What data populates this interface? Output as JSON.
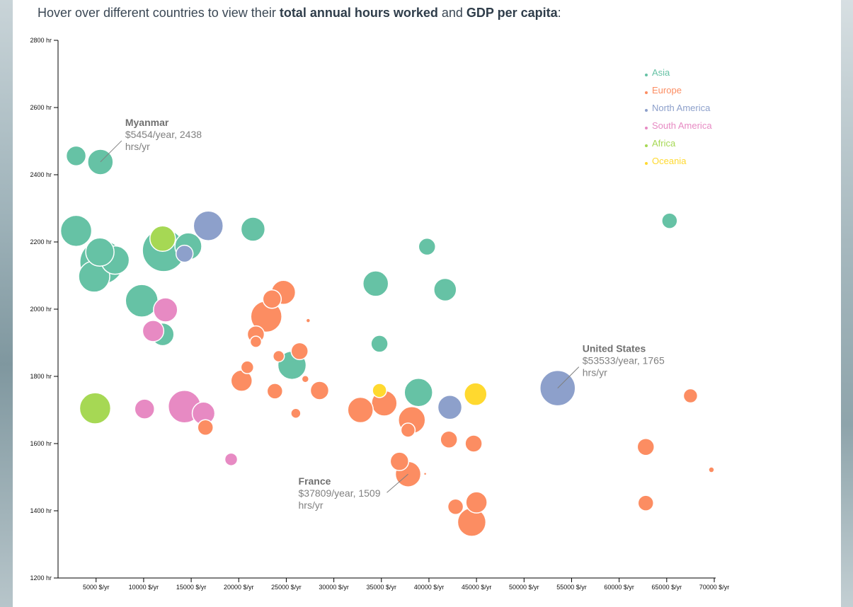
{
  "header": {
    "prefix": "Hover over different countries to view their ",
    "bold1": "total annual hours worked",
    "mid": " and ",
    "bold2": "GDP per capita",
    "suffix": ":"
  },
  "colors": {
    "Asia": "#66c2a5",
    "Europe": "#fc8d62",
    "North America": "#8da0cb",
    "South America": "#e78ac3",
    "Africa": "#a6d854",
    "Oceania": "#ffd92f"
  },
  "chart_data": {
    "type": "scatter",
    "title": "",
    "xlabel": "",
    "ylabel": "",
    "xlim": [
      1000,
      70000
    ],
    "ylim": [
      1200,
      2800
    ],
    "x_ticks": [
      5000,
      10000,
      15000,
      20000,
      25000,
      30000,
      35000,
      40000,
      45000,
      50000,
      55000,
      60000,
      65000,
      70000
    ],
    "x_tick_labels": [
      "5000 $/yr",
      "10000 $/yr",
      "15000 $/yr",
      "20000 $/yr",
      "25000 $/yr",
      "30000 $/yr",
      "35000 $/yr",
      "40000 $/yr",
      "45000 $/yr",
      "50000 $/yr",
      "55000 $/yr",
      "60000 $/yr",
      "65000 $/yr",
      "70000 $/yr"
    ],
    "y_ticks": [
      1200,
      1400,
      1600,
      1800,
      2000,
      2200,
      2400,
      2600,
      2800
    ],
    "y_tick_labels": [
      "1200 hr",
      "1400 hr",
      "1600 hr",
      "1800 hr",
      "2000 hr",
      "2200 hr",
      "2400 hr",
      "2600 hr",
      "2800 hr"
    ],
    "grid": false,
    "legend_position": "top-right",
    "legend": [
      "Asia",
      "Europe",
      "North America",
      "South America",
      "Africa",
      "Oceania"
    ],
    "point_size": "relative bubble size",
    "points": [
      {
        "x": 5600,
        "y": 2140,
        "size": 31,
        "region": "Asia"
      },
      {
        "x": 12100,
        "y": 2175,
        "size": 30,
        "region": "Asia"
      },
      {
        "x": 9800,
        "y": 2025,
        "size": 23,
        "region": "Asia"
      },
      {
        "x": 4800,
        "y": 2097,
        "size": 22,
        "region": "Asia"
      },
      {
        "x": 2900,
        "y": 2233,
        "size": 22,
        "region": "Asia"
      },
      {
        "x": 7000,
        "y": 2146,
        "size": 20,
        "region": "Asia"
      },
      {
        "x": 5400,
        "y": 2170,
        "size": 20,
        "region": "Asia"
      },
      {
        "x": 25600,
        "y": 1833,
        "size": 20,
        "region": "Asia"
      },
      {
        "x": 38900,
        "y": 1752,
        "size": 20,
        "region": "Asia"
      },
      {
        "x": 14700,
        "y": 2187,
        "size": 19,
        "region": "Asia"
      },
      {
        "x": 5454,
        "y": 2438,
        "size": 18,
        "region": "Asia"
      },
      {
        "x": 34400,
        "y": 2076,
        "size": 18,
        "region": "Asia"
      },
      {
        "x": 21500,
        "y": 2238,
        "size": 17,
        "region": "Asia"
      },
      {
        "x": 41700,
        "y": 2058,
        "size": 16,
        "region": "Asia"
      },
      {
        "x": 12000,
        "y": 1925,
        "size": 16,
        "region": "Asia"
      },
      {
        "x": 2900,
        "y": 2456,
        "size": 14,
        "region": "Asia"
      },
      {
        "x": 34800,
        "y": 1897,
        "size": 12,
        "region": "Asia"
      },
      {
        "x": 39800,
        "y": 2186,
        "size": 12,
        "region": "Asia"
      },
      {
        "x": 65300,
        "y": 2263,
        "size": 11,
        "region": "Asia"
      },
      {
        "x": 22900,
        "y": 1978,
        "size": 22,
        "region": "Europe"
      },
      {
        "x": 44500,
        "y": 1366,
        "size": 20,
        "region": "Europe"
      },
      {
        "x": 35300,
        "y": 1720,
        "size": 18,
        "region": "Europe"
      },
      {
        "x": 37809,
        "y": 1509,
        "size": 18,
        "region": "Europe"
      },
      {
        "x": 32800,
        "y": 1700,
        "size": 18,
        "region": "Europe"
      },
      {
        "x": 38200,
        "y": 1670,
        "size": 19,
        "region": "Europe"
      },
      {
        "x": 24700,
        "y": 2050,
        "size": 17,
        "region": "Europe"
      },
      {
        "x": 20300,
        "y": 1787,
        "size": 15,
        "region": "Europe"
      },
      {
        "x": 45000,
        "y": 1425,
        "size": 15,
        "region": "Europe"
      },
      {
        "x": 36900,
        "y": 1547,
        "size": 13,
        "region": "Europe"
      },
      {
        "x": 28500,
        "y": 1758,
        "size": 13,
        "region": "Europe"
      },
      {
        "x": 23500,
        "y": 2030,
        "size": 13,
        "region": "Europe"
      },
      {
        "x": 26400,
        "y": 1875,
        "size": 12,
        "region": "Europe"
      },
      {
        "x": 42100,
        "y": 1612,
        "size": 12,
        "region": "Europe"
      },
      {
        "x": 44700,
        "y": 1600,
        "size": 12,
        "region": "Europe"
      },
      {
        "x": 21800,
        "y": 1925,
        "size": 12,
        "region": "Europe"
      },
      {
        "x": 23800,
        "y": 1756,
        "size": 11,
        "region": "Europe"
      },
      {
        "x": 62800,
        "y": 1590,
        "size": 12,
        "region": "Europe"
      },
      {
        "x": 16500,
        "y": 1648,
        "size": 11,
        "region": "Europe"
      },
      {
        "x": 42800,
        "y": 1412,
        "size": 11,
        "region": "Europe"
      },
      {
        "x": 62800,
        "y": 1423,
        "size": 11,
        "region": "Europe"
      },
      {
        "x": 37800,
        "y": 1640,
        "size": 10,
        "region": "Europe"
      },
      {
        "x": 67500,
        "y": 1742,
        "size": 10,
        "region": "Europe"
      },
      {
        "x": 20900,
        "y": 1827,
        "size": 9,
        "region": "Europe"
      },
      {
        "x": 24200,
        "y": 1860,
        "size": 8,
        "region": "Europe"
      },
      {
        "x": 21800,
        "y": 1903,
        "size": 8,
        "region": "Europe"
      },
      {
        "x": 26000,
        "y": 1690,
        "size": 7,
        "region": "Europe"
      },
      {
        "x": 27000,
        "y": 1792,
        "size": 5,
        "region": "Europe"
      },
      {
        "x": 27300,
        "y": 1966,
        "size": 3,
        "region": "Europe"
      },
      {
        "x": 39600,
        "y": 1510,
        "size": 2,
        "region": "Europe"
      },
      {
        "x": 69700,
        "y": 1522,
        "size": 4,
        "region": "Europe"
      },
      {
        "x": 53533,
        "y": 1765,
        "size": 25,
        "region": "North America"
      },
      {
        "x": 16800,
        "y": 2248,
        "size": 21,
        "region": "North America"
      },
      {
        "x": 42200,
        "y": 1708,
        "size": 17,
        "region": "North America"
      },
      {
        "x": 14300,
        "y": 2165,
        "size": 12,
        "region": "North America"
      },
      {
        "x": 14300,
        "y": 1710,
        "size": 23,
        "region": "South America"
      },
      {
        "x": 16300,
        "y": 1690,
        "size": 16,
        "region": "South America"
      },
      {
        "x": 12300,
        "y": 1998,
        "size": 17,
        "region": "South America"
      },
      {
        "x": 11000,
        "y": 1935,
        "size": 15,
        "region": "South America"
      },
      {
        "x": 10100,
        "y": 1703,
        "size": 14,
        "region": "South America"
      },
      {
        "x": 19200,
        "y": 1553,
        "size": 9,
        "region": "South America"
      },
      {
        "x": 4900,
        "y": 1705,
        "size": 22,
        "region": "Africa"
      },
      {
        "x": 12000,
        "y": 2210,
        "size": 18,
        "region": "Africa"
      },
      {
        "x": 44900,
        "y": 1747,
        "size": 16,
        "region": "Oceania"
      },
      {
        "x": 34800,
        "y": 1758,
        "size": 10,
        "region": "Oceania"
      }
    ],
    "annotations": [
      {
        "name": "Myanmar",
        "line1": "$5454/year, 2438",
        "line2": "hrs/yr",
        "x": 5454,
        "y": 2438
      },
      {
        "name": "United States",
        "line1": "$53533/year, 1765",
        "line2": "hrs/yr",
        "x": 53533,
        "y": 1765
      },
      {
        "name": "France",
        "line1": "$37809/year, 1509",
        "line2": "hrs/yr",
        "x": 37809,
        "y": 1509
      }
    ]
  }
}
